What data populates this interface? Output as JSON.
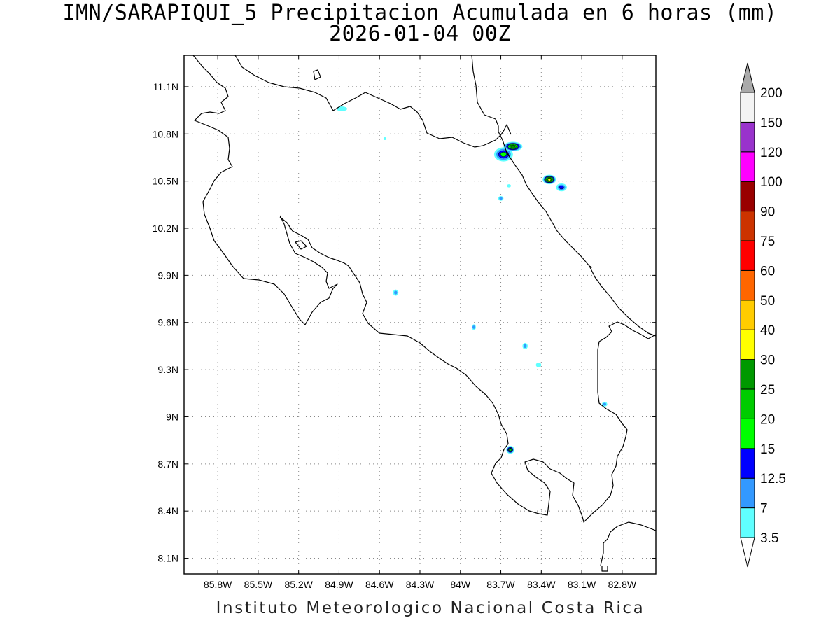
{
  "title": {
    "line1": "IMN/SARAPIQUI_5 Precipitacion Acumulada en 6 horas (mm)",
    "line2": "2026-01-04 00Z"
  },
  "footer": "Instituto Meteorologico Nacional Costa Rica",
  "map": {
    "lon_range": [
      -86.05,
      -82.55
    ],
    "lat_range": [
      8.0,
      11.3
    ],
    "lat_ticks": [
      {
        "value": 11.1,
        "label": "11.1N"
      },
      {
        "value": 10.8,
        "label": "10.8N"
      },
      {
        "value": 10.5,
        "label": "10.5N"
      },
      {
        "value": 10.2,
        "label": "10.2N"
      },
      {
        "value": 9.9,
        "label": "9.9N"
      },
      {
        "value": 9.6,
        "label": "9.6N"
      },
      {
        "value": 9.3,
        "label": "9.3N"
      },
      {
        "value": 9.0,
        "label": "9N"
      },
      {
        "value": 8.7,
        "label": "8.7N"
      },
      {
        "value": 8.4,
        "label": "8.4N"
      },
      {
        "value": 8.1,
        "label": "8.1N"
      }
    ],
    "lon_ticks": [
      {
        "value": -85.8,
        "label": "85.8W"
      },
      {
        "value": -85.5,
        "label": "85.5W"
      },
      {
        "value": -85.2,
        "label": "85.2W"
      },
      {
        "value": -84.9,
        "label": "84.9W"
      },
      {
        "value": -84.6,
        "label": "84.6W"
      },
      {
        "value": -84.3,
        "label": "84.3W"
      },
      {
        "value": -84.0,
        "label": "84W"
      },
      {
        "value": -83.7,
        "label": "83.7W"
      },
      {
        "value": -83.4,
        "label": "83.4W"
      },
      {
        "value": -83.1,
        "label": "83.1W"
      },
      {
        "value": -82.8,
        "label": "82.8W"
      }
    ],
    "grid": "dotted",
    "precip_cells": [
      {
        "lon": -84.88,
        "lat": 10.96,
        "mm": 3.5,
        "rx": 0.04,
        "ry": 0.015
      },
      {
        "lon": -83.68,
        "lat": 10.67,
        "mm": 15,
        "rx": 0.07,
        "ry": 0.045
      },
      {
        "lon": -83.61,
        "lat": 10.72,
        "mm": 25,
        "rx": 0.07,
        "ry": 0.03
      },
      {
        "lon": -83.34,
        "lat": 10.51,
        "mm": 30,
        "rx": 0.05,
        "ry": 0.03
      },
      {
        "lon": -83.25,
        "lat": 10.46,
        "mm": 12.5,
        "rx": 0.04,
        "ry": 0.025
      },
      {
        "lon": -83.7,
        "lat": 10.39,
        "mm": 7,
        "rx": 0.02,
        "ry": 0.015
      },
      {
        "lon": -83.64,
        "lat": 10.47,
        "mm": 3.5,
        "rx": 0.015,
        "ry": 0.01
      },
      {
        "lon": -84.48,
        "lat": 9.79,
        "mm": 7,
        "rx": 0.02,
        "ry": 0.02
      },
      {
        "lon": -83.9,
        "lat": 9.57,
        "mm": 7,
        "rx": 0.015,
        "ry": 0.018
      },
      {
        "lon": -83.52,
        "lat": 9.45,
        "mm": 7,
        "rx": 0.02,
        "ry": 0.02
      },
      {
        "lon": -83.42,
        "lat": 9.33,
        "mm": 3.5,
        "rx": 0.02,
        "ry": 0.015
      },
      {
        "lon": -82.93,
        "lat": 9.08,
        "mm": 7,
        "rx": 0.02,
        "ry": 0.015
      },
      {
        "lon": -83.63,
        "lat": 8.79,
        "mm": 20,
        "rx": 0.03,
        "ry": 0.025
      },
      {
        "lon": -84.56,
        "lat": 10.77,
        "mm": 3.5,
        "rx": 0.01,
        "ry": 0.008
      }
    ]
  },
  "colorbar": {
    "levels": [
      "3.5",
      "7",
      "12.5",
      "15",
      "20",
      "25",
      "30",
      "40",
      "50",
      "60",
      "75",
      "90",
      "100",
      "120",
      "150",
      "200"
    ],
    "colors": [
      "#60ffff",
      "#3399ff",
      "#0000ff",
      "#00ff00",
      "#00cc00",
      "#009900",
      "#ffff00",
      "#ffcc00",
      "#ff6600",
      "#ff0000",
      "#cc3300",
      "#990000",
      "#ff00ff",
      "#9933cc",
      "#f4f4f4",
      "#aaaaaa"
    ]
  }
}
